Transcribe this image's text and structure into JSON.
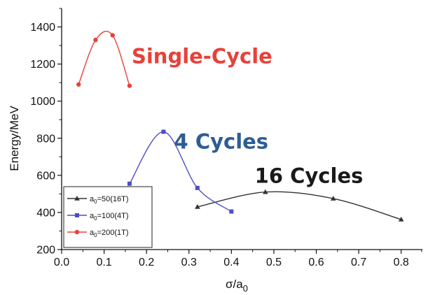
{
  "chart_data": {
    "type": "line",
    "xlabel": "σ/a",
    "xlabel_sub": "0",
    "ylabel": "Energy/MeV",
    "xlim": [
      0.0,
      0.85
    ],
    "ylim": [
      200,
      1500
    ],
    "xticks": [
      "0.0",
      "0.1",
      "0.2",
      "0.3",
      "0.4",
      "0.5",
      "0.6",
      "0.7",
      "0.8"
    ],
    "yticks": [
      "200",
      "400",
      "600",
      "800",
      "1000",
      "1200",
      "1400"
    ],
    "grid": false,
    "legend_position": "lower-left",
    "series": [
      {
        "name": "a0=50(16T)",
        "legend_prefix": "a",
        "legend_sub": "0",
        "legend_suffix": "=50(16T)",
        "color": "#333333",
        "marker": "triangle",
        "x": [
          0.32,
          0.48,
          0.64,
          0.8
        ],
        "y": [
          430,
          510,
          475,
          362
        ]
      },
      {
        "name": "a0=100(4T)",
        "legend_prefix": "a",
        "legend_sub": "0",
        "legend_suffix": "=100(4T)",
        "color": "#4a4fc4",
        "marker": "square",
        "x": [
          0.16,
          0.24,
          0.32,
          0.4
        ],
        "y": [
          555,
          835,
          532,
          405
        ]
      },
      {
        "name": "a0=200(1T)",
        "legend_prefix": "a",
        "legend_sub": "0",
        "legend_suffix": "=200(1T)",
        "color": "#e8413a",
        "marker": "circle",
        "x": [
          0.04,
          0.08,
          0.12,
          0.16
        ],
        "y": [
          1090,
          1330,
          1355,
          1083
        ]
      }
    ],
    "annotations": [
      {
        "text": "Single-Cycle",
        "color": "#e8413a",
        "x": 0.165,
        "y": 1205
      },
      {
        "text": "4 Cycles",
        "color": "#2d5d94",
        "x": 0.265,
        "y": 745
      },
      {
        "text": "16 Cycles",
        "color": "#1a1a1a",
        "x": 0.455,
        "y": 560
      }
    ]
  }
}
